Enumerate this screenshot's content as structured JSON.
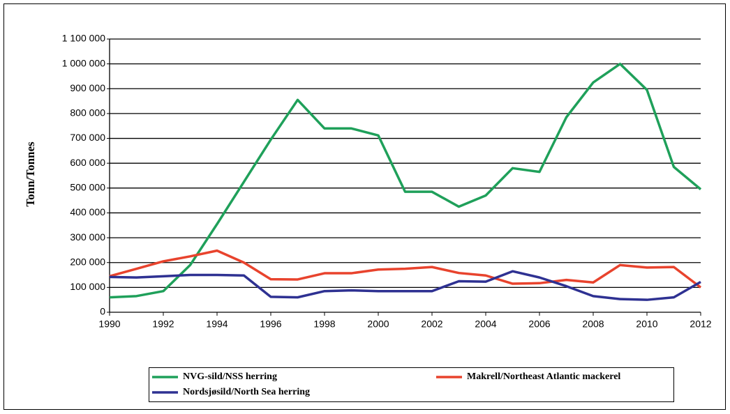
{
  "chart_data": {
    "type": "line",
    "y_label": "Tonn/Tonnes",
    "x": [
      1990,
      1991,
      1992,
      1993,
      1994,
      1995,
      1996,
      1997,
      1998,
      1999,
      2000,
      2001,
      2002,
      2003,
      2004,
      2005,
      2006,
      2007,
      2008,
      2009,
      2010,
      2011,
      2012
    ],
    "series": [
      {
        "name": "NVG-sild/NSS herring",
        "color": "#1fa05a",
        "values": [
          60000,
          65000,
          85000,
          190000,
          355000,
          525000,
          695000,
          855000,
          740000,
          740000,
          712000,
          485000,
          485000,
          425000,
          470000,
          580000,
          565000,
          785000,
          925000,
          1000000,
          895000,
          585000,
          495000
        ]
      },
      {
        "name": "Makrell/Northeast Atlantic mackerel",
        "color": "#e8432d",
        "values": [
          145000,
          175000,
          205000,
          225000,
          248000,
          200000,
          133000,
          132000,
          157000,
          157000,
          172000,
          175000,
          182000,
          158000,
          148000,
          115000,
          117000,
          130000,
          120000,
          190000,
          180000,
          182000,
          100000
        ]
      },
      {
        "name": "Nordsjøsild/North Sea herring",
        "color": "#2e3192",
        "values": [
          142000,
          140000,
          145000,
          150000,
          150000,
          148000,
          62000,
          60000,
          85000,
          88000,
          85000,
          85000,
          85000,
          125000,
          123000,
          165000,
          140000,
          105000,
          65000,
          53000,
          50000,
          60000,
          122000
        ]
      }
    ],
    "xlim": [
      1990,
      2012
    ],
    "xticks": [
      1990,
      1992,
      1994,
      1996,
      1998,
      2000,
      2002,
      2004,
      2006,
      2008,
      2010,
      2012
    ],
    "ylim": [
      0,
      1100000
    ],
    "yticks": [
      0,
      {
        "value": 100000,
        "label": "100 000"
      },
      {
        "value": 200000,
        "label": "200 000"
      },
      {
        "value": 300000,
        "label": "300 000"
      },
      {
        "value": 400000,
        "label": "400 000"
      },
      {
        "value": 500000,
        "label": "500 000"
      },
      {
        "value": 600000,
        "label": "600 000"
      },
      {
        "value": 700000,
        "label": "700 000"
      },
      {
        "value": 800000,
        "label": "800 000"
      },
      {
        "value": 900000,
        "label": "900 000"
      },
      {
        "value": 1000000,
        "label": "1 000 000"
      },
      {
        "value": 1100000,
        "label": "1 100 000"
      }
    ],
    "grid": true,
    "legend": "bottom"
  }
}
